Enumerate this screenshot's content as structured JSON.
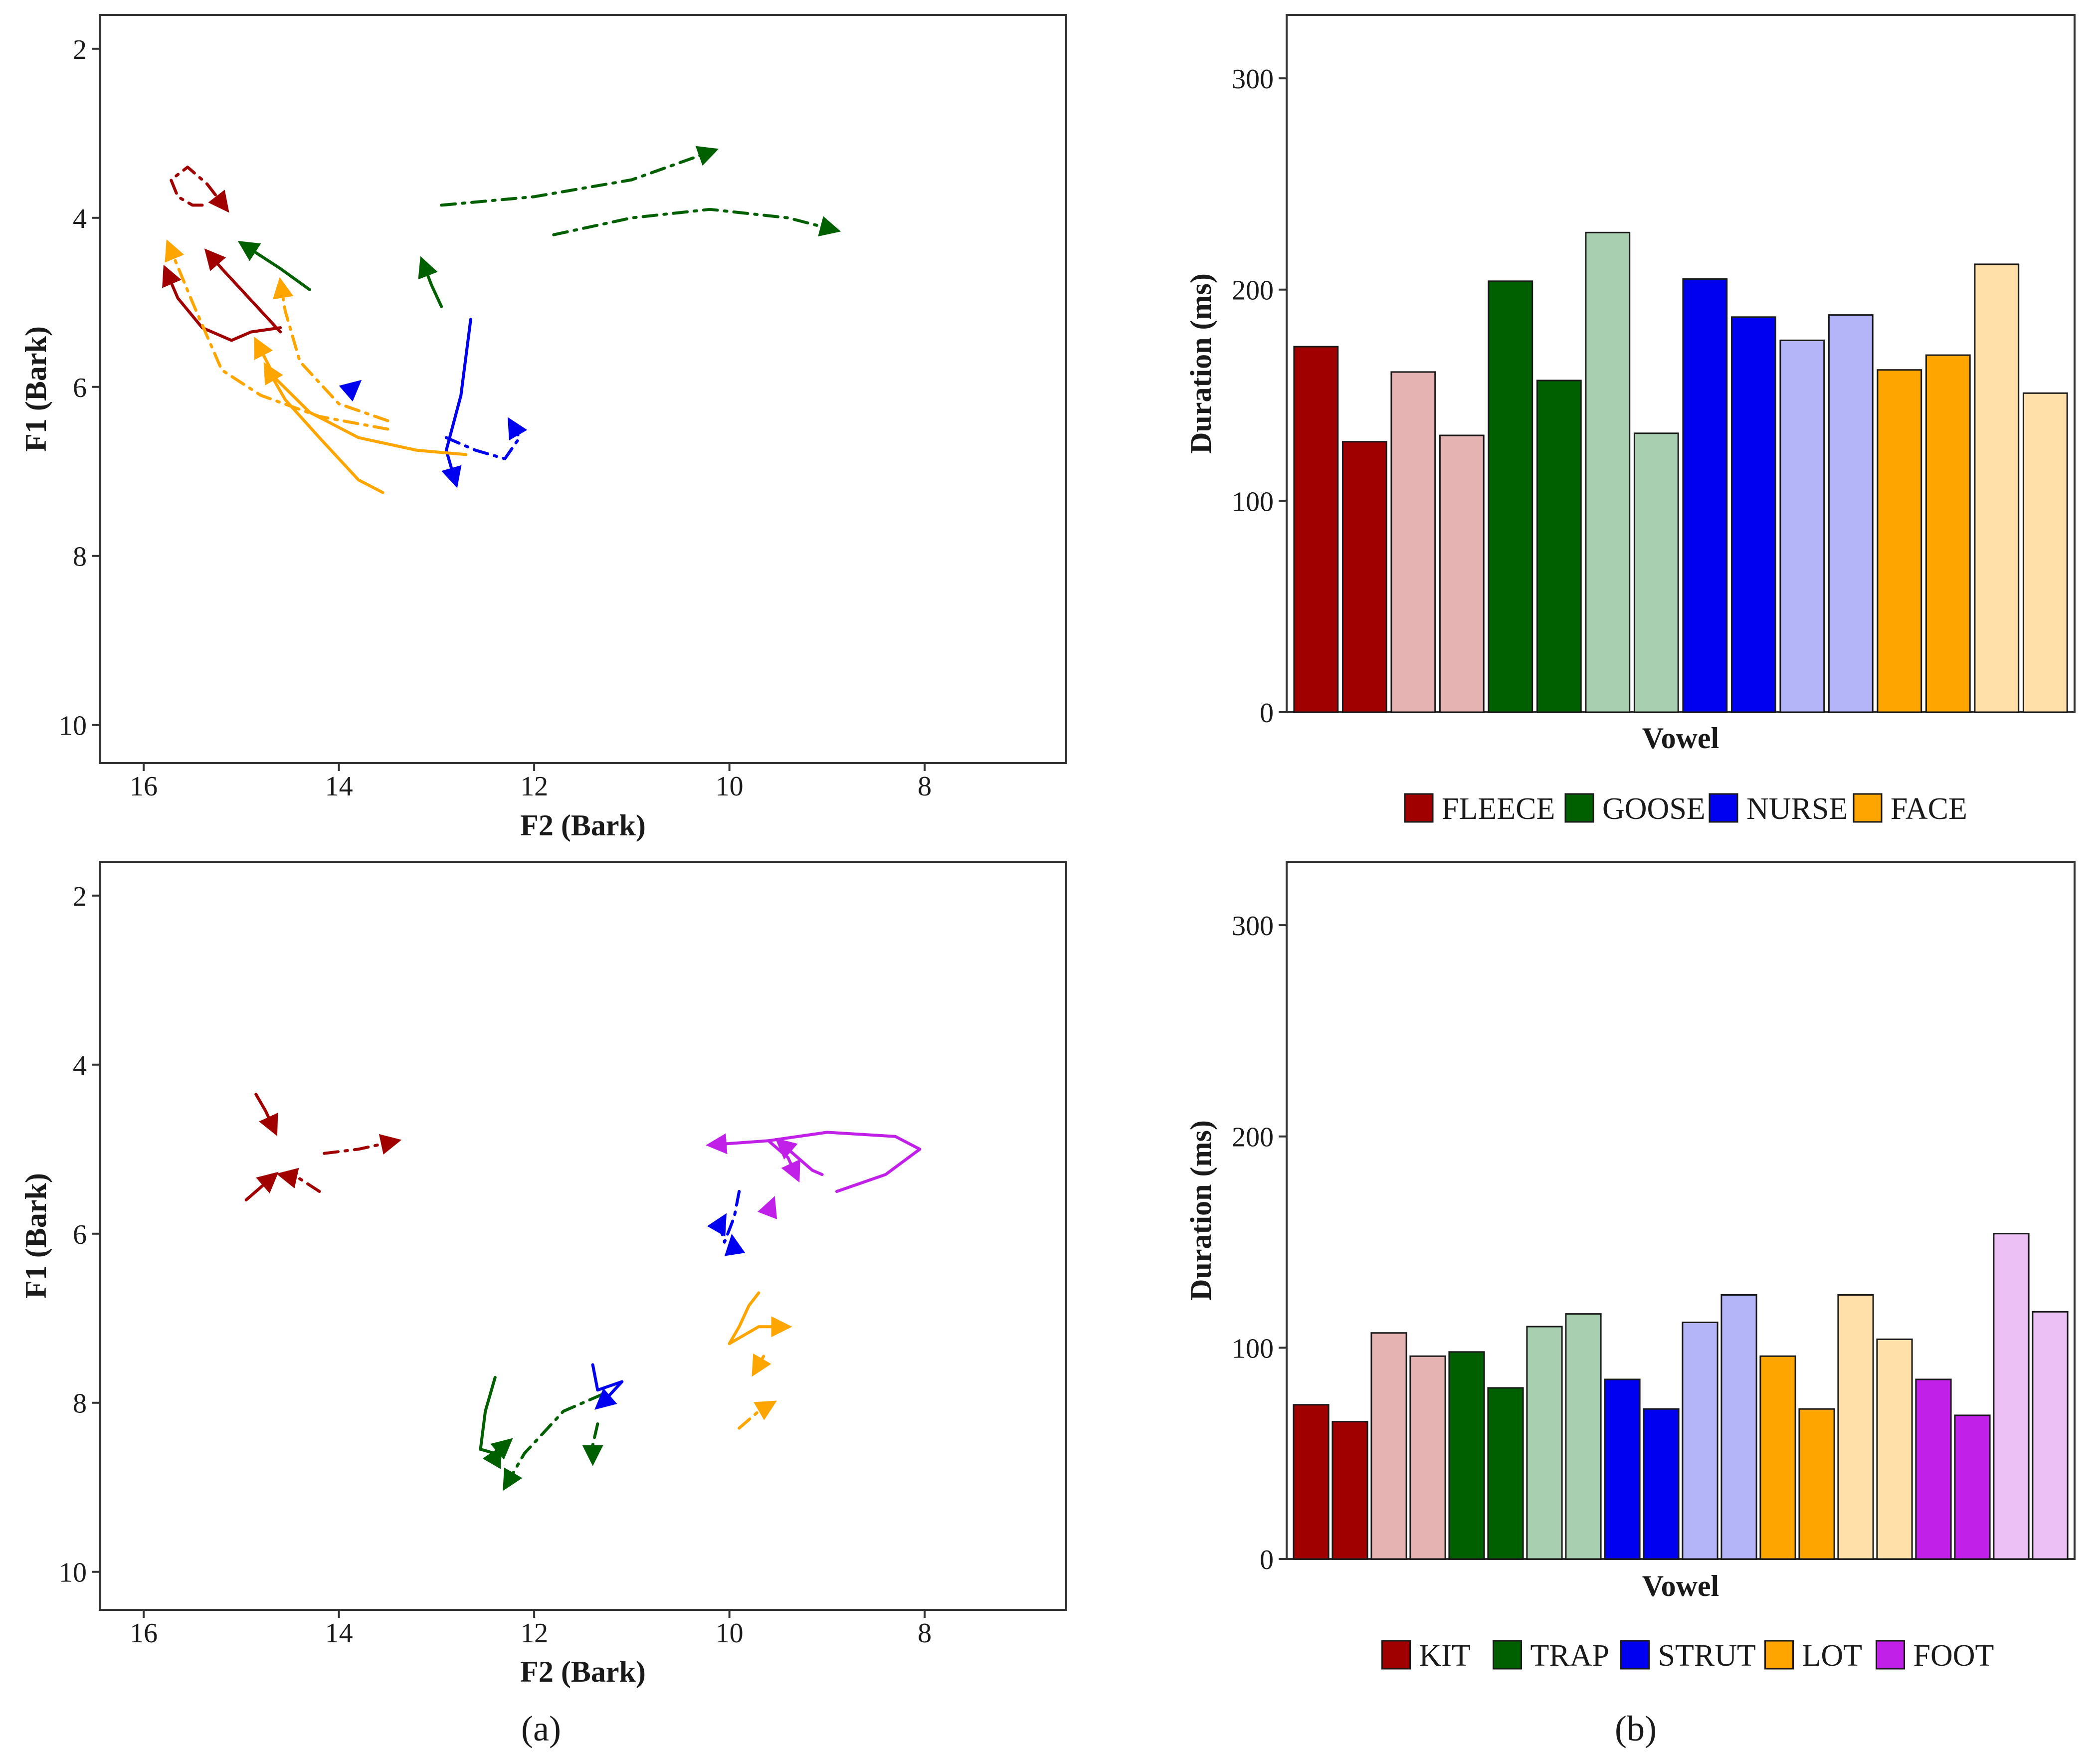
{
  "figure": {
    "panel_labels": {
      "a": "(a)",
      "b": "(b)"
    }
  },
  "colors": {
    "red": "#a00000",
    "red_light": "#e6b3b3",
    "green": "#006000",
    "green_light": "#a8d0b0",
    "blue": "#0000f0",
    "blue_light": "#b4b4f8",
    "orange": "#ffa500",
    "orange_light": "#ffe0a8",
    "purple": "#c020e8",
    "purple_light": "#ecc0f4"
  },
  "chart_data": [
    {
      "id": "trajectory_top",
      "type": "line",
      "title": "",
      "xlabel": "F2 (Bark)",
      "ylabel": "F1 (Bark)",
      "xlim": [
        16.45,
        6.55
      ],
      "ylim": [
        10.45,
        1.6
      ],
      "xticks": [
        16,
        14,
        12,
        10,
        8
      ],
      "yticks": [
        2,
        4,
        6,
        8,
        10
      ],
      "series": [
        {
          "name": "FLEECE solid 1",
          "color": "red",
          "dash": "solid",
          "points": [
            [
              14.6,
              5.3
            ],
            [
              14.9,
              5.35
            ],
            [
              15.1,
              5.45
            ],
            [
              15.4,
              5.3
            ],
            [
              15.65,
              4.95
            ],
            [
              15.78,
              4.6
            ]
          ]
        },
        {
          "name": "FLEECE solid 2",
          "color": "red",
          "dash": "solid",
          "points": [
            [
              14.6,
              5.35
            ],
            [
              14.8,
              5.1
            ],
            [
              15.0,
              4.85
            ],
            [
              15.2,
              4.6
            ],
            [
              15.35,
              4.4
            ]
          ]
        },
        {
          "name": "FLEECE dashdot",
          "color": "red",
          "dash": "dashdot",
          "points": [
            [
              15.4,
              3.85
            ],
            [
              15.5,
              3.85
            ],
            [
              15.65,
              3.75
            ],
            [
              15.72,
              3.55
            ],
            [
              15.55,
              3.4
            ],
            [
              15.35,
              3.6
            ],
            [
              15.15,
              3.9
            ]
          ]
        },
        {
          "name": "GOOSE dashdot 1",
          "color": "green",
          "dash": "dashdot",
          "points": [
            [
              12.95,
              3.85
            ],
            [
              12.0,
              3.75
            ],
            [
              11.0,
              3.55
            ],
            [
              10.15,
              3.2
            ]
          ]
        },
        {
          "name": "GOOSE dashdot 2",
          "color": "green",
          "dash": "dashdot",
          "points": [
            [
              11.8,
              4.2
            ],
            [
              11.0,
              4.0
            ],
            [
              10.2,
              3.9
            ],
            [
              9.4,
              4.0
            ],
            [
              8.9,
              4.15
            ]
          ]
        },
        {
          "name": "GOOSE solid 1",
          "color": "green",
          "dash": "solid",
          "points": [
            [
              14.3,
              4.85
            ],
            [
              14.6,
              4.6
            ],
            [
              15.0,
              4.3
            ]
          ]
        },
        {
          "name": "GOOSE solid 2",
          "color": "green",
          "dash": "solid",
          "points": [
            [
              12.95,
              5.05
            ],
            [
              13.05,
              4.8
            ],
            [
              13.15,
              4.5
            ]
          ]
        },
        {
          "name": "NURSE solid",
          "color": "blue",
          "dash": "solid",
          "points": [
            [
              12.65,
              5.2
            ],
            [
              12.75,
              6.1
            ],
            [
              12.9,
              6.75
            ],
            [
              12.8,
              7.15
            ]
          ]
        },
        {
          "name": "NURSE dashdot",
          "color": "blue",
          "dash": "dashdot",
          "points": [
            [
              12.9,
              6.6
            ],
            [
              12.6,
              6.75
            ],
            [
              12.3,
              6.85
            ],
            [
              12.15,
              6.6
            ],
            [
              12.25,
              6.4
            ]
          ]
        },
        {
          "name": "NURSE short",
          "color": "blue",
          "dash": "solid",
          "points": [
            [
              13.85,
              6.0
            ],
            [
              13.8,
              5.95
            ]
          ]
        },
        {
          "name": "FACE solid 1",
          "color": "orange",
          "dash": "solid",
          "points": [
            [
              12.7,
              6.8
            ],
            [
              13.2,
              6.75
            ],
            [
              13.8,
              6.6
            ],
            [
              14.3,
              6.3
            ],
            [
              14.65,
              5.9
            ],
            [
              14.85,
              5.45
            ]
          ]
        },
        {
          "name": "FACE solid 2",
          "color": "orange",
          "dash": "solid",
          "points": [
            [
              13.55,
              7.25
            ],
            [
              13.8,
              7.1
            ],
            [
              14.2,
              6.6
            ],
            [
              14.55,
              6.15
            ],
            [
              14.75,
              5.75
            ]
          ]
        },
        {
          "name": "FACE dashdot 1",
          "color": "orange",
          "dash": "dashdot",
          "points": [
            [
              13.5,
              6.5
            ],
            [
              14.2,
              6.35
            ],
            [
              14.8,
              6.1
            ],
            [
              15.2,
              5.8
            ],
            [
              15.5,
              5.0
            ],
            [
              15.75,
              4.3
            ]
          ]
        },
        {
          "name": "FACE dashdot 2",
          "color": "orange",
          "dash": "dashdot",
          "points": [
            [
              13.5,
              6.4
            ],
            [
              14.0,
              6.2
            ],
            [
              14.4,
              5.7
            ],
            [
              14.55,
              5.1
            ],
            [
              14.6,
              4.75
            ]
          ]
        }
      ]
    },
    {
      "id": "duration_top",
      "type": "bar",
      "title": "",
      "xlabel": "Vowel",
      "ylabel": "Duration (ms)",
      "ylim": [
        0,
        330
      ],
      "yticks": [
        0,
        100,
        200,
        300
      ],
      "values": [
        173,
        128,
        161,
        131,
        204,
        157,
        227,
        132,
        205,
        187,
        176,
        188,
        162,
        169,
        212,
        151
      ],
      "bar_colors": [
        "red",
        "red",
        "red_light",
        "red_light",
        "green",
        "green",
        "green_light",
        "green_light",
        "blue",
        "blue",
        "blue_light",
        "blue_light",
        "orange",
        "orange",
        "orange_light",
        "orange_light"
      ],
      "legend": [
        {
          "label": "FLEECE",
          "color": "red"
        },
        {
          "label": "GOOSE",
          "color": "green"
        },
        {
          "label": "NURSE",
          "color": "blue"
        },
        {
          "label": "FACE",
          "color": "orange"
        }
      ]
    },
    {
      "id": "trajectory_bottom",
      "type": "line",
      "title": "",
      "xlabel": "F2 (Bark)",
      "ylabel": "F1 (Bark)",
      "xlim": [
        16.45,
        6.55
      ],
      "ylim": [
        10.45,
        1.6
      ],
      "xticks": [
        16,
        14,
        12,
        10,
        8
      ],
      "yticks": [
        2,
        4,
        6,
        8,
        10
      ],
      "series": [
        {
          "name": "KIT solid 1",
          "color": "red",
          "dash": "solid",
          "points": [
            [
              14.85,
              4.35
            ],
            [
              14.75,
              4.55
            ],
            [
              14.65,
              4.8
            ]
          ]
        },
        {
          "name": "KIT solid 2",
          "color": "red",
          "dash": "solid",
          "points": [
            [
              14.95,
              5.6
            ],
            [
              14.8,
              5.45
            ],
            [
              14.65,
              5.3
            ]
          ]
        },
        {
          "name": "KIT dashdot 1",
          "color": "red",
          "dash": "dashdot",
          "points": [
            [
              14.15,
              5.05
            ],
            [
              13.8,
              5.0
            ],
            [
              13.4,
              4.9
            ]
          ]
        },
        {
          "name": "KIT dashdot 2",
          "color": "red",
          "dash": "dashdot",
          "points": [
            [
              14.2,
              5.5
            ],
            [
              14.4,
              5.35
            ],
            [
              14.6,
              5.3
            ]
          ]
        },
        {
          "name": "TRAP solid",
          "color": "green",
          "dash": "solid",
          "points": [
            [
              12.4,
              7.7
            ],
            [
              12.5,
              8.1
            ],
            [
              12.55,
              8.55
            ],
            [
              12.4,
              8.6
            ],
            [
              12.25,
              8.45
            ]
          ]
        },
        {
          "name": "TRAP dashdot 1",
          "color": "green",
          "dash": "dashdot",
          "points": [
            [
              11.3,
              7.9
            ],
            [
              11.7,
              8.1
            ],
            [
              12.1,
              8.6
            ],
            [
              12.3,
              9.0
            ]
          ]
        },
        {
          "name": "TRAP dashdot 2",
          "color": "green",
          "dash": "dashdot",
          "points": [
            [
              11.35,
              8.25
            ],
            [
              11.4,
              8.5
            ],
            [
              11.4,
              8.7
            ]
          ]
        },
        {
          "name": "TRAP short",
          "color": "green",
          "dash": "solid",
          "points": [
            [
              12.4,
              8.65
            ],
            [
              12.35,
              8.55
            ]
          ]
        },
        {
          "name": "STRUT solid",
          "color": "blue",
          "dash": "solid",
          "points": [
            [
              11.4,
              7.55
            ],
            [
              11.35,
              7.85
            ],
            [
              11.1,
              7.75
            ],
            [
              11.3,
              8.0
            ],
            [
              11.35,
              8.05
            ]
          ]
        },
        {
          "name": "STRUT dashdot",
          "color": "blue",
          "dash": "dashdot",
          "points": [
            [
              9.9,
              5.5
            ],
            [
              9.95,
              5.8
            ],
            [
              10.05,
              6.1
            ],
            [
              10.1,
              5.9
            ],
            [
              10.05,
              5.8
            ]
          ]
        },
        {
          "name": "STRUT dashdot 2",
          "color": "blue",
          "dash": "dashdot",
          "points": [
            [
              9.95,
              6.2
            ],
            [
              9.97,
              6.05
            ]
          ]
        },
        {
          "name": "FOOT solid 1",
          "color": "purple",
          "dash": "solid",
          "points": [
            [
              8.9,
              5.5
            ],
            [
              8.4,
              5.3
            ],
            [
              8.05,
              5.0
            ],
            [
              8.3,
              4.85
            ],
            [
              9.0,
              4.8
            ],
            [
              9.6,
              4.9
            ],
            [
              10.2,
              4.95
            ]
          ]
        },
        {
          "name": "FOOT solid 2",
          "color": "purple",
          "dash": "solid",
          "points": [
            [
              9.05,
              5.3
            ],
            [
              9.15,
              5.25
            ],
            [
              9.35,
              5.05
            ],
            [
              9.5,
              4.9
            ]
          ]
        },
        {
          "name": "FOOT solid 3",
          "color": "purple",
          "dash": "solid",
          "points": [
            [
              9.6,
              4.9
            ],
            [
              9.4,
              5.1
            ],
            [
              9.3,
              5.35
            ]
          ]
        },
        {
          "name": "FOOT dashdot",
          "color": "purple",
          "dash": "dashdot",
          "points": [
            [
              9.6,
              5.75
            ],
            [
              9.55,
              5.6
            ]
          ]
        },
        {
          "name": "LOT solid",
          "color": "orange",
          "dash": "solid",
          "points": [
            [
              9.7,
              6.7
            ],
            [
              9.8,
              6.85
            ],
            [
              9.9,
              7.1
            ],
            [
              10.0,
              7.3
            ],
            [
              9.7,
              7.1
            ],
            [
              9.4,
              7.1
            ]
          ]
        },
        {
          "name": "LOT dashdot",
          "color": "orange",
          "dash": "dashdot",
          "points": [
            [
              9.9,
              8.3
            ],
            [
              9.7,
              8.1
            ],
            [
              9.55,
              8.0
            ]
          ]
        },
        {
          "name": "LOT dashdot 2",
          "color": "orange",
          "dash": "dashdot",
          "points": [
            [
              9.65,
              7.45
            ],
            [
              9.75,
              7.65
            ]
          ]
        }
      ]
    },
    {
      "id": "duration_bottom",
      "type": "bar",
      "title": "",
      "xlabel": "Vowel",
      "ylabel": "Duration (ms)",
      "ylim": [
        0,
        330
      ],
      "yticks": [
        0,
        100,
        200,
        300
      ],
      "values": [
        73,
        65,
        107,
        96,
        98,
        81,
        110,
        116,
        85,
        71,
        112,
        125,
        96,
        71,
        125,
        104,
        85,
        68,
        154,
        117
      ],
      "bar_colors": [
        "red",
        "red",
        "red_light",
        "red_light",
        "green",
        "green",
        "green_light",
        "green_light",
        "blue",
        "blue",
        "blue_light",
        "blue_light",
        "orange",
        "orange",
        "orange_light",
        "orange_light",
        "purple",
        "purple",
        "purple_light",
        "purple_light"
      ],
      "legend": [
        {
          "label": "KIT",
          "color": "red"
        },
        {
          "label": "TRAP",
          "color": "green"
        },
        {
          "label": "STRUT",
          "color": "blue"
        },
        {
          "label": "LOT",
          "color": "orange"
        },
        {
          "label": "FOOT",
          "color": "purple"
        }
      ]
    }
  ]
}
